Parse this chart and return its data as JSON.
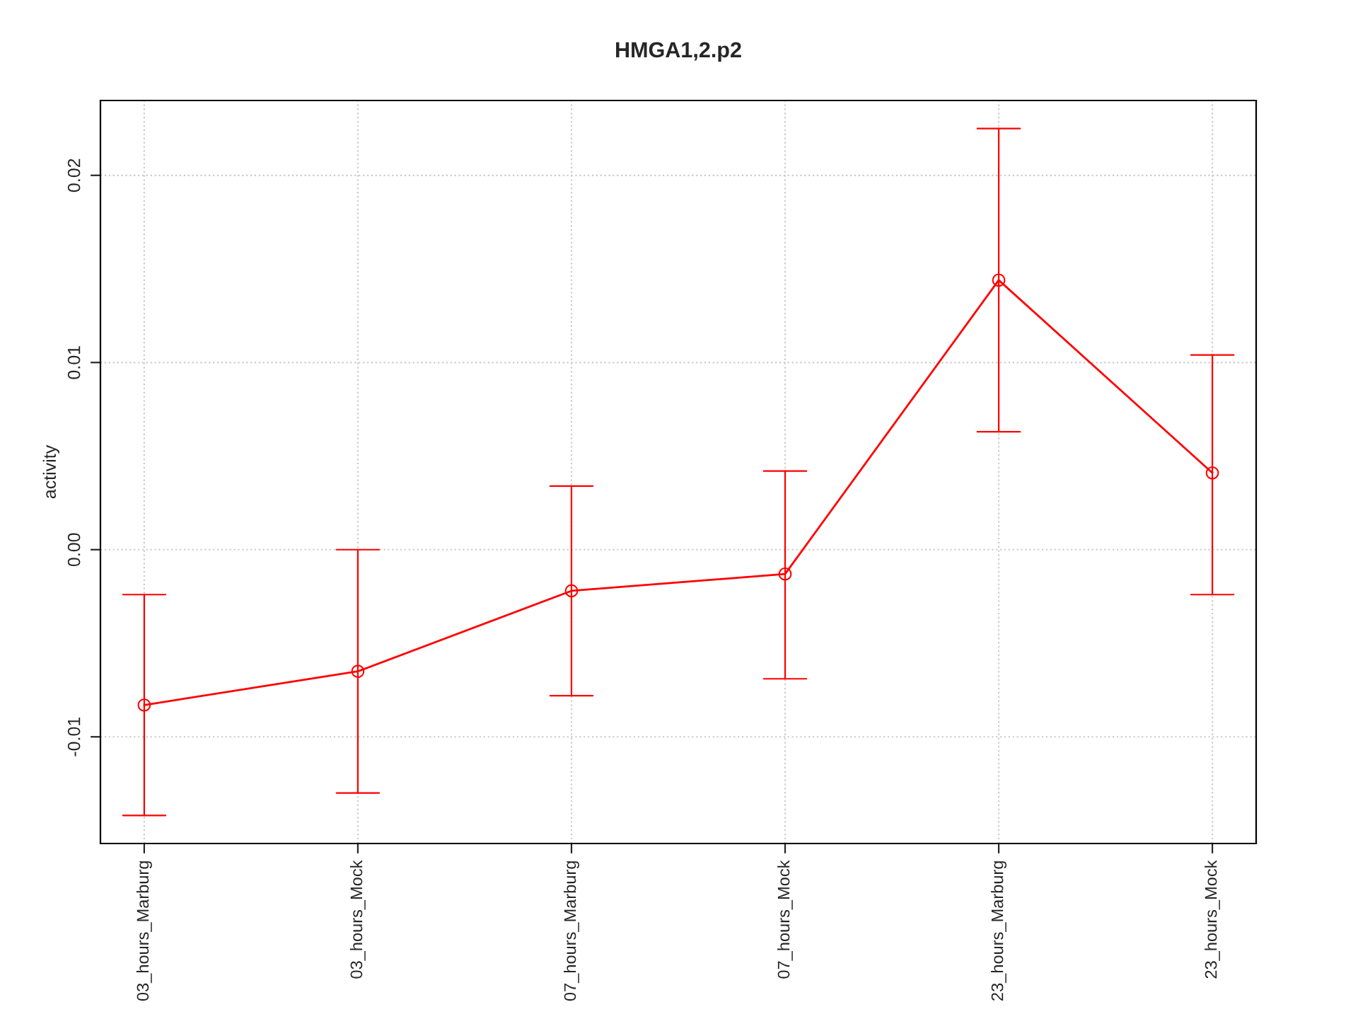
{
  "chart_data": {
    "type": "line",
    "title": "HMGA1,2.p2",
    "ylabel": "activity",
    "categories": [
      "03_hours_Marburg",
      "03_hours_Mock",
      "07_hours_Marburg",
      "07_hours_Mock",
      "23_hours_Marburg",
      "23_hours_Mock"
    ],
    "series": [
      {
        "color": "#ff0000",
        "values": [
          -0.0083,
          -0.0065,
          -0.0022,
          -0.0013,
          0.0144,
          0.0041
        ],
        "errors": [
          [
            -0.0142,
            -0.0024
          ],
          [
            -0.013,
            0.0
          ],
          [
            -0.0078,
            0.0034
          ],
          [
            -0.0069,
            0.0042
          ],
          [
            0.0063,
            0.0225
          ],
          [
            -0.0024,
            0.0104
          ]
        ]
      }
    ],
    "ylim": [
      -0.0157,
      0.024
    ],
    "yticks": [
      {
        "value": -0.01,
        "label": "-0.01"
      },
      {
        "value": 0,
        "label": "0.00"
      },
      {
        "value": 0.01,
        "label": "0.01"
      },
      {
        "value": 0.02,
        "label": "0.02"
      }
    ],
    "grid": true,
    "marker": "circle",
    "line_style": "solid"
  }
}
